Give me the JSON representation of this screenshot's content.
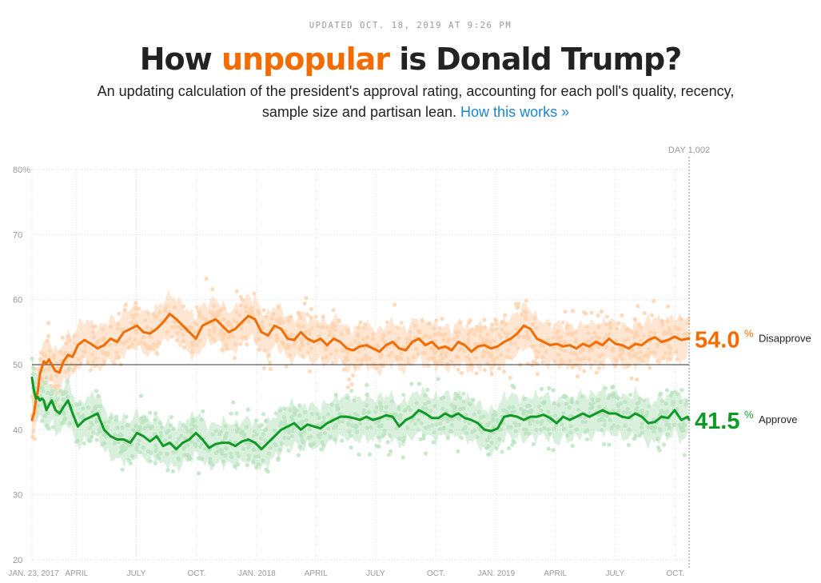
{
  "header": {
    "updated": "UPDATED OCT. 18, 2019 AT 9:26 PM",
    "title_before": "How ",
    "title_accent": "unpopular",
    "title_after": " is Donald Trump?",
    "subtitle_text": "An updating calculation of the president's approval rating, accounting for each poll's quality, recency, sample size and partisan lean.",
    "how_link": "How this works »"
  },
  "colors": {
    "approve": "#0f9a25",
    "disapprove": "#f36c00",
    "approve_light": "#b9e3bf",
    "disapprove_light": "#ffd2ad",
    "grid": "#dddddd",
    "title_accent": "#f36c00",
    "link": "#1a86c9"
  },
  "chart_data": {
    "type": "line",
    "day_marker": "DAY 1,002",
    "ylim": [
      20,
      80
    ],
    "y_ticks": [
      20,
      30,
      40,
      50,
      60,
      70,
      80
    ],
    "y_tick_labels": [
      "20",
      "30",
      "40",
      "50",
      "60",
      "70",
      "80%"
    ],
    "x_ticks": [
      {
        "day": 0,
        "label": "JAN. 23, 2017"
      },
      {
        "day": 68,
        "label": "APRIL"
      },
      {
        "day": 159,
        "label": "JULY"
      },
      {
        "day": 251,
        "label": "OCT."
      },
      {
        "day": 343,
        "label": "JAN. 2018"
      },
      {
        "day": 433,
        "label": "APRIL"
      },
      {
        "day": 524,
        "label": "JULY"
      },
      {
        "day": 616,
        "label": "OCT."
      },
      {
        "day": 708,
        "label": "JAN. 2019"
      },
      {
        "day": 798,
        "label": "APRIL"
      },
      {
        "day": 889,
        "label": "JULY"
      },
      {
        "day": 981,
        "label": "OCT."
      }
    ],
    "reference_line": 50,
    "series": [
      {
        "name": "Disapprove",
        "final_value": "54.0",
        "x": [
          0,
          3,
          6,
          9,
          12,
          15,
          18,
          22,
          26,
          30,
          36,
          42,
          48,
          55,
          62,
          70,
          80,
          90,
          100,
          110,
          120,
          130,
          140,
          150,
          160,
          170,
          180,
          190,
          200,
          210,
          220,
          230,
          240,
          250,
          260,
          270,
          280,
          290,
          300,
          310,
          320,
          330,
          340,
          350,
          360,
          370,
          380,
          390,
          400,
          410,
          420,
          430,
          440,
          450,
          460,
          470,
          480,
          490,
          500,
          510,
          520,
          530,
          540,
          550,
          560,
          570,
          580,
          590,
          600,
          610,
          620,
          630,
          640,
          650,
          660,
          670,
          680,
          690,
          700,
          710,
          720,
          730,
          740,
          750,
          760,
          770,
          780,
          790,
          800,
          810,
          820,
          830,
          840,
          850,
          860,
          870,
          880,
          890,
          900,
          910,
          920,
          930,
          940,
          950,
          960,
          970,
          980,
          990,
          1000,
          1002
        ],
        "y": [
          41.5,
          42.5,
          44.5,
          46.0,
          48.5,
          49.5,
          50.5,
          50.2,
          50.8,
          50.0,
          49.0,
          48.8,
          50.5,
          51.5,
          51.2,
          53.0,
          53.8,
          53.2,
          52.5,
          53.0,
          54.0,
          53.5,
          55.0,
          55.5,
          56.0,
          55.0,
          54.8,
          55.5,
          56.5,
          57.8,
          57.0,
          56.0,
          55.0,
          54.0,
          56.0,
          56.5,
          57.0,
          56.0,
          55.0,
          55.5,
          56.5,
          57.5,
          57.0,
          55.0,
          54.5,
          56.0,
          55.5,
          54.0,
          53.8,
          55.0,
          54.0,
          53.5,
          54.0,
          53.0,
          54.0,
          53.5,
          52.5,
          52.2,
          52.8,
          53.0,
          52.5,
          52.0,
          53.0,
          53.5,
          52.5,
          52.2,
          53.5,
          54.0,
          53.0,
          53.5,
          52.5,
          52.8,
          52.2,
          53.5,
          53.0,
          52.0,
          52.8,
          53.0,
          52.5,
          52.8,
          53.5,
          54.0,
          54.8,
          56.0,
          55.5,
          54.0,
          53.5,
          53.0,
          53.2,
          52.8,
          53.0,
          52.5,
          53.2,
          52.8,
          53.5,
          53.0,
          54.0,
          53.2,
          53.0,
          52.5,
          53.2,
          53.0,
          53.8,
          54.2,
          53.5,
          53.8,
          54.3,
          53.8,
          54.0,
          54.0
        ]
      },
      {
        "name": "Approve",
        "final_value": "41.5",
        "x": [
          0,
          3,
          6,
          9,
          12,
          15,
          18,
          22,
          26,
          30,
          36,
          42,
          48,
          55,
          62,
          70,
          80,
          90,
          100,
          110,
          120,
          130,
          140,
          150,
          160,
          170,
          180,
          190,
          200,
          210,
          220,
          230,
          240,
          250,
          260,
          270,
          280,
          290,
          300,
          310,
          320,
          330,
          340,
          350,
          360,
          370,
          380,
          390,
          400,
          410,
          420,
          430,
          440,
          450,
          460,
          470,
          480,
          490,
          500,
          510,
          520,
          530,
          540,
          550,
          560,
          570,
          580,
          590,
          600,
          610,
          620,
          630,
          640,
          650,
          660,
          670,
          680,
          690,
          700,
          710,
          720,
          730,
          740,
          750,
          760,
          770,
          780,
          790,
          800,
          810,
          820,
          830,
          840,
          850,
          860,
          870,
          880,
          890,
          900,
          910,
          920,
          930,
          940,
          950,
          960,
          970,
          980,
          990,
          1000,
          1002
        ],
        "y": [
          48.0,
          46.0,
          44.8,
          45.0,
          44.5,
          44.8,
          44.5,
          43.0,
          43.8,
          44.5,
          43.0,
          42.5,
          43.5,
          44.5,
          42.5,
          40.5,
          41.5,
          42.0,
          42.5,
          40.0,
          39.0,
          38.5,
          38.5,
          38.0,
          39.5,
          39.0,
          38.2,
          39.0,
          37.5,
          38.0,
          37.0,
          38.0,
          38.5,
          39.5,
          38.5,
          37.2,
          37.8,
          38.0,
          38.0,
          37.5,
          38.2,
          38.5,
          38.0,
          37.0,
          38.0,
          39.0,
          40.0,
          40.5,
          41.0,
          40.0,
          40.8,
          40.5,
          40.2,
          41.0,
          41.5,
          42.0,
          42.0,
          41.8,
          41.5,
          42.0,
          41.5,
          41.8,
          42.2,
          42.0,
          40.5,
          41.5,
          42.0,
          43.0,
          42.5,
          41.8,
          41.8,
          42.5,
          42.0,
          42.5,
          41.8,
          41.5,
          41.0,
          40.0,
          39.8,
          40.2,
          42.0,
          42.2,
          42.0,
          41.5,
          42.0,
          42.0,
          42.3,
          41.8,
          41.0,
          42.0,
          41.5,
          42.0,
          42.5,
          42.0,
          42.5,
          43.0,
          42.5,
          42.5,
          42.0,
          41.8,
          42.5,
          42.0,
          41.0,
          41.2,
          42.0,
          41.8,
          43.0,
          41.5,
          42.0,
          41.5
        ]
      }
    ]
  }
}
